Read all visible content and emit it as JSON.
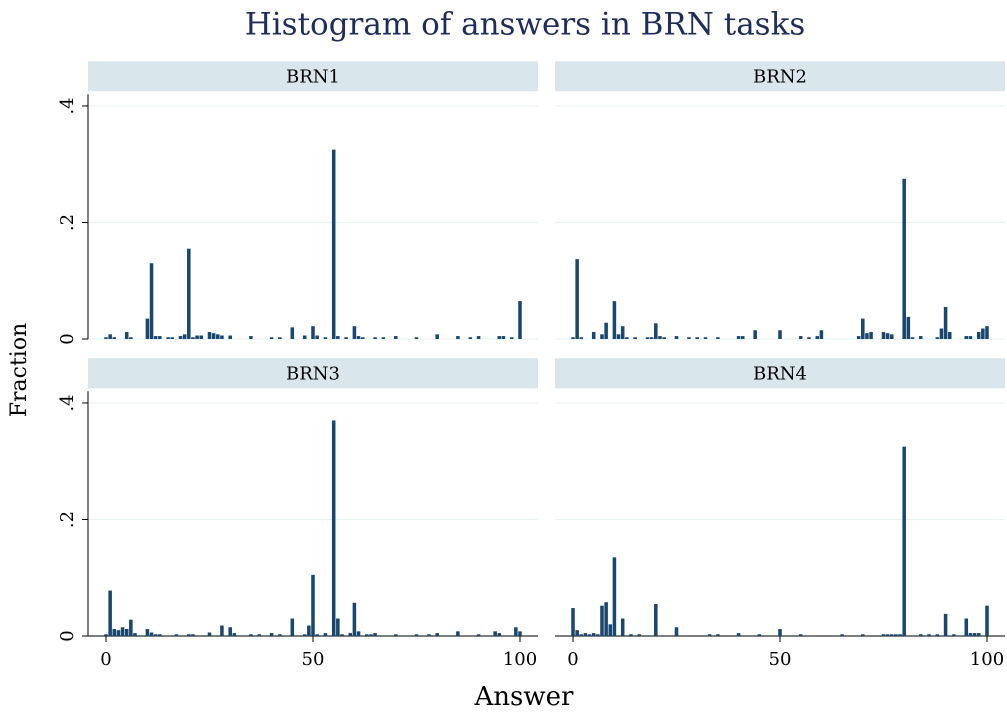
{
  "title": "Histogram of answers in BRN tasks",
  "x_label": "Answer",
  "y_label": "Fraction",
  "bins": [
    -0.5,
    0.5,
    1.5,
    2.5,
    3.5,
    4.5,
    5.5,
    6.5,
    7.5,
    8.5,
    9.5,
    10.5,
    11.5,
    12.5,
    13.5,
    14.5,
    15.5,
    16.5,
    17.5,
    18.5,
    19.5,
    20.5,
    21.5,
    22.5,
    23.5,
    24.5,
    25.5,
    26.5,
    27.5,
    28.5,
    29.5,
    30.5,
    31.5,
    32.5,
    33.5,
    34.5,
    35.5,
    36.5,
    37.5,
    38.5,
    39.5,
    40.5,
    41.5,
    42.5,
    43.5,
    44.5,
    45.5,
    46.5,
    47.5,
    48.5,
    49.5,
    50.5,
    51.5,
    52.5,
    53.5,
    54.5,
    55.5,
    56.5,
    57.5,
    58.5,
    59.5,
    60.5,
    61.5,
    62.5,
    63.5,
    64.5,
    65.5,
    66.5,
    67.5,
    68.5,
    69.5,
    70.5,
    71.5,
    72.5,
    73.5,
    74.5,
    75.5,
    76.5,
    77.5,
    78.5,
    79.5,
    80.5,
    81.5,
    82.5,
    83.5,
    84.5,
    85.5,
    86.5,
    87.5,
    88.5,
    89.5,
    90.5,
    91.5,
    92.5,
    93.5,
    94.5,
    95.5,
    96.5,
    97.5,
    98.5,
    99.5,
    100.5
  ],
  "xlim": [
    -4.35,
    104.35
  ],
  "ylim": [
    0,
    0.42
  ],
  "xticks": [
    0,
    50,
    100
  ],
  "yticks": [
    0,
    {
      "value": 0.2,
      "label": ".2"
    },
    {
      "value": 0.4,
      "label": ".4"
    }
  ],
  "color": "#1a476f",
  "grid": true,
  "chart_data": [
    {
      "type": "histogram",
      "title": "BRN1",
      "values": [
        0.003,
        0.008,
        0.003,
        0,
        0,
        0.012,
        0.003,
        0,
        0,
        0,
        0.035,
        0.13,
        0.005,
        0.005,
        0,
        0.003,
        0.003,
        0,
        0.005,
        0.008,
        0.155,
        0.003,
        0.006,
        0.006,
        0,
        0.012,
        0.01,
        0.008,
        0.006,
        0,
        0.006,
        0,
        0,
        0,
        0,
        0.005,
        0,
        0,
        0,
        0,
        0.003,
        0,
        0.003,
        0,
        0,
        0.02,
        0,
        0,
        0.006,
        0,
        0.022,
        0.006,
        0,
        0.003,
        0,
        0.325,
        0.005,
        0,
        0.003,
        0,
        0.022,
        0.005,
        0.003,
        0,
        0,
        0.003,
        0,
        0.003,
        0,
        0,
        0.005,
        0,
        0,
        0,
        0,
        0.003,
        0,
        0,
        0,
        0,
        0.008,
        0,
        0,
        0,
        0,
        0.005,
        0,
        0,
        0.003,
        0,
        0.005,
        0,
        0,
        0,
        0,
        0.005,
        0.005,
        0,
        0.003,
        0,
        0.065
      ]
    },
    {
      "type": "histogram",
      "title": "BRN2",
      "values": [
        0.003,
        0.137,
        0.003,
        0,
        0,
        0.012,
        0,
        0.008,
        0.028,
        0,
        0.065,
        0.008,
        0.022,
        0.003,
        0,
        0.003,
        0,
        0,
        0.003,
        0.003,
        0.027,
        0.005,
        0.003,
        0,
        0,
        0.005,
        0,
        0,
        0.003,
        0,
        0.003,
        0,
        0.003,
        0,
        0,
        0.003,
        0,
        0,
        0,
        0,
        0.005,
        0.005,
        0,
        0,
        0.015,
        0,
        0,
        0,
        0,
        0,
        0.015,
        0,
        0,
        0,
        0,
        0.005,
        0,
        0.003,
        0,
        0.005,
        0.015,
        0,
        0,
        0,
        0,
        0,
        0,
        0,
        0,
        0.005,
        0.035,
        0.01,
        0.012,
        0,
        0,
        0.012,
        0.01,
        0.008,
        0,
        0,
        0.275,
        0.038,
        0.003,
        0,
        0.005,
        0,
        0,
        0,
        0.003,
        0.018,
        0.055,
        0.012,
        0,
        0,
        0,
        0.005,
        0.005,
        0,
        0.012,
        0.018,
        0.022
      ]
    },
    {
      "type": "histogram",
      "title": "BRN3",
      "values": [
        0.003,
        0.078,
        0.012,
        0.01,
        0.015,
        0.012,
        0.028,
        0.005,
        0,
        0,
        0.012,
        0.006,
        0.003,
        0.003,
        0,
        0,
        0,
        0.003,
        0,
        0,
        0.003,
        0.003,
        0,
        0,
        0,
        0.006,
        0,
        0,
        0.018,
        0,
        0.015,
        0.005,
        0,
        0,
        0,
        0.003,
        0,
        0.003,
        0,
        0,
        0.005,
        0,
        0.003,
        0,
        0,
        0.03,
        0,
        0,
        0.003,
        0.018,
        0.105,
        0.003,
        0,
        0.005,
        0,
        0.37,
        0.03,
        0.003,
        0,
        0.005,
        0.057,
        0.008,
        0,
        0.003,
        0.003,
        0.005,
        0,
        0,
        0,
        0,
        0.003,
        0,
        0,
        0,
        0,
        0.003,
        0,
        0,
        0.003,
        0,
        0.005,
        0,
        0,
        0,
        0,
        0.008,
        0,
        0,
        0,
        0,
        0.003,
        0,
        0,
        0,
        0.008,
        0.005,
        0,
        0,
        0,
        0.015,
        0.008
      ]
    },
    {
      "type": "histogram",
      "title": "BRN4",
      "values": [
        0.048,
        0.01,
        0.003,
        0.005,
        0.003,
        0.005,
        0.003,
        0.052,
        0.058,
        0.02,
        0.135,
        0,
        0.03,
        0,
        0.003,
        0,
        0.003,
        0,
        0,
        0,
        0.055,
        0,
        0,
        0,
        0,
        0.015,
        0,
        0,
        0,
        0,
        0,
        0,
        0,
        0.003,
        0,
        0.003,
        0,
        0,
        0,
        0,
        0.005,
        0,
        0,
        0,
        0,
        0.003,
        0,
        0,
        0,
        0,
        0.012,
        0,
        0,
        0,
        0,
        0.003,
        0,
        0,
        0,
        0,
        0,
        0,
        0,
        0,
        0,
        0.003,
        0,
        0,
        0,
        0,
        0.003,
        0,
        0,
        0,
        0,
        0.003,
        0.003,
        0.003,
        0.003,
        0.003,
        0.325,
        0,
        0,
        0,
        0.003,
        0,
        0.003,
        0,
        0.003,
        0,
        0.038,
        0,
        0.003,
        0,
        0,
        0.03,
        0.005,
        0.005,
        0.005,
        0,
        0.052
      ]
    }
  ]
}
